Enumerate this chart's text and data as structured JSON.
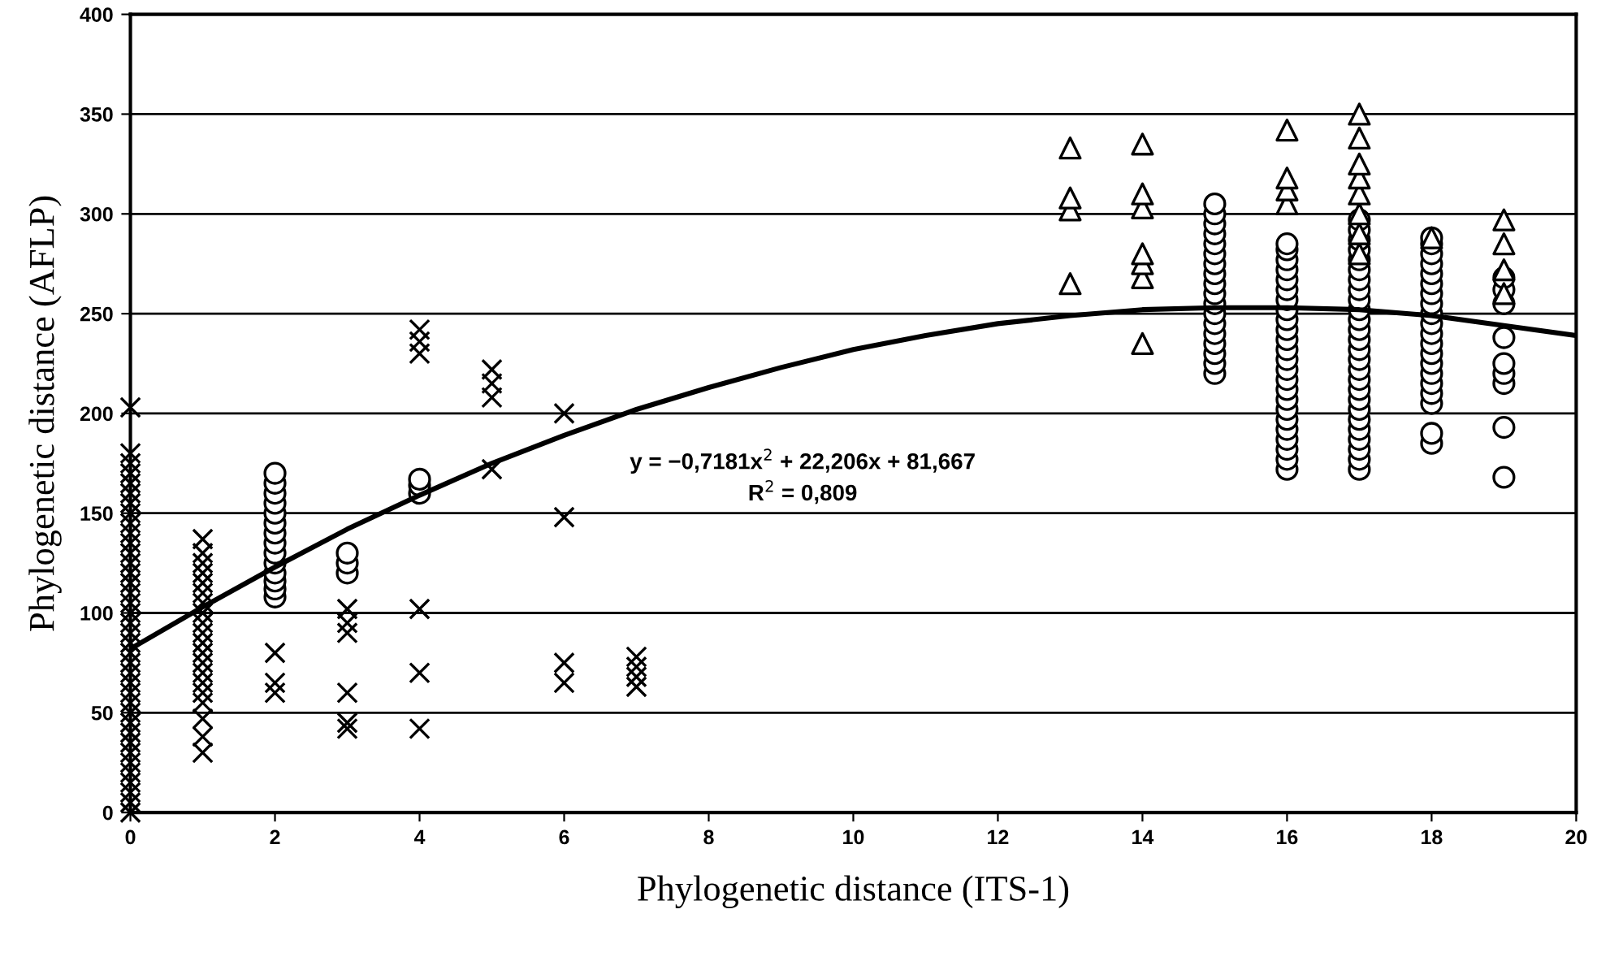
{
  "chart_data": {
    "type": "scatter",
    "xlabel": "Phylogenetic distance (ITS-1)",
    "ylabel": "Phylogenetic distance (AFLP)",
    "xlim": [
      0,
      20
    ],
    "xticks": [
      0,
      2,
      4,
      6,
      8,
      10,
      12,
      14,
      16,
      18,
      20
    ],
    "ylim": [
      0,
      400
    ],
    "yticks": [
      0,
      50,
      100,
      150,
      200,
      250,
      300,
      350,
      400
    ],
    "grid": "y",
    "annotations": [
      "y = −0,7181x$^{2}$ + 22,206x + 81,667",
      "R$^{2}$ = 0,809"
    ],
    "series": [
      {
        "marker": "cross",
        "color": "#000000",
        "x": [
          0,
          0,
          0,
          0,
          0,
          0,
          0,
          0,
          0,
          0,
          0,
          0,
          0,
          0,
          0,
          0,
          0,
          0,
          0,
          0,
          0,
          0,
          0,
          0,
          0,
          0,
          0,
          0,
          0,
          0,
          0,
          0,
          0,
          0,
          0,
          0,
          0,
          0,
          1,
          1,
          1,
          1,
          1,
          1,
          1,
          1,
          1,
          1,
          1,
          1,
          1,
          1,
          1,
          1,
          1,
          1,
          1,
          1,
          2,
          2,
          2,
          3,
          3,
          3,
          3,
          3,
          3,
          4,
          4,
          4,
          4,
          4,
          4,
          5,
          5,
          5,
          5,
          6,
          6,
          6,
          6,
          7,
          7,
          7,
          7
        ],
        "values": [
          0,
          5,
          10,
          15,
          20,
          25,
          30,
          35,
          40,
          45,
          50,
          55,
          60,
          65,
          70,
          75,
          80,
          85,
          90,
          95,
          100,
          105,
          110,
          115,
          120,
          125,
          130,
          135,
          140,
          145,
          150,
          155,
          160,
          165,
          170,
          175,
          180,
          203,
          30,
          38,
          47,
          55,
          60,
          65,
          70,
          75,
          80,
          85,
          90,
          95,
          100,
          105,
          110,
          115,
          120,
          125,
          130,
          137,
          60,
          65,
          80,
          42,
          45,
          60,
          90,
          95,
          102,
          42,
          70,
          102,
          230,
          236,
          242,
          172,
          208,
          215,
          222,
          65,
          75,
          148,
          200,
          63,
          68,
          73,
          78
        ]
      },
      {
        "marker": "circle",
        "color": "#000000",
        "x": [
          2,
          2,
          2,
          2,
          2,
          2,
          2,
          2,
          2,
          2,
          2,
          2,
          2,
          2,
          3,
          3,
          3,
          4,
          4,
          4,
          15,
          15,
          15,
          15,
          15,
          15,
          15,
          15,
          15,
          15,
          15,
          15,
          15,
          15,
          15,
          15,
          15,
          15,
          16,
          16,
          16,
          16,
          16,
          16,
          16,
          16,
          16,
          16,
          16,
          16,
          16,
          16,
          16,
          16,
          16,
          16,
          16,
          16,
          16,
          16,
          16,
          16,
          17,
          17,
          17,
          17,
          17,
          17,
          17,
          17,
          17,
          17,
          17,
          17,
          17,
          17,
          17,
          17,
          17,
          17,
          17,
          17,
          17,
          17,
          17,
          17,
          17,
          17,
          18,
          18,
          18,
          18,
          18,
          18,
          18,
          18,
          18,
          18,
          18,
          18,
          18,
          18,
          18,
          18,
          18,
          18,
          18,
          18,
          19,
          19,
          19,
          19,
          19,
          19,
          19,
          19,
          19
        ],
        "values": [
          108,
          112,
          116,
          120,
          125,
          130,
          135,
          140,
          145,
          150,
          155,
          160,
          165,
          170,
          120,
          125,
          130,
          160,
          164,
          167,
          220,
          225,
          230,
          235,
          240,
          245,
          250,
          255,
          260,
          265,
          270,
          275,
          280,
          285,
          290,
          295,
          300,
          305,
          172,
          177,
          182,
          187,
          192,
          197,
          202,
          207,
          212,
          217,
          222,
          227,
          232,
          237,
          242,
          247,
          252,
          257,
          262,
          267,
          272,
          277,
          282,
          285,
          172,
          177,
          182,
          187,
          192,
          197,
          202,
          207,
          212,
          217,
          222,
          227,
          232,
          237,
          242,
          247,
          252,
          257,
          262,
          267,
          272,
          277,
          282,
          287,
          292,
          297,
          185,
          190,
          205,
          210,
          215,
          220,
          225,
          230,
          235,
          240,
          245,
          250,
          255,
          260,
          265,
          270,
          275,
          280,
          285,
          288,
          168,
          193,
          215,
          220,
          225,
          238,
          255,
          262,
          268
        ]
      },
      {
        "marker": "triangle",
        "color": "#000000",
        "x": [
          13,
          13,
          13,
          13,
          14,
          14,
          14,
          14,
          14,
          14,
          14,
          16,
          16,
          16,
          16,
          17,
          17,
          17,
          17,
          17,
          17,
          17,
          17,
          18,
          19,
          19,
          19,
          19
        ],
        "values": [
          265,
          302,
          308,
          333,
          235,
          268,
          275,
          280,
          303,
          310,
          335,
          305,
          312,
          318,
          342,
          280,
          290,
          300,
          310,
          318,
          325,
          338,
          350,
          288,
          260,
          272,
          285,
          297
        ]
      },
      {
        "type": "line",
        "marker": "none",
        "color": "#000000",
        "line_style": "solid",
        "x": [
          0,
          1,
          2,
          3,
          4,
          5,
          6,
          7,
          8,
          9,
          10,
          11,
          12,
          13,
          14,
          15,
          16,
          17,
          18,
          19,
          20
        ],
        "values": [
          82,
          103,
          123,
          142,
          159,
          175,
          189,
          202,
          213,
          223,
          232,
          239,
          245,
          249,
          252,
          253,
          253,
          252,
          249,
          244,
          239
        ]
      }
    ]
  }
}
